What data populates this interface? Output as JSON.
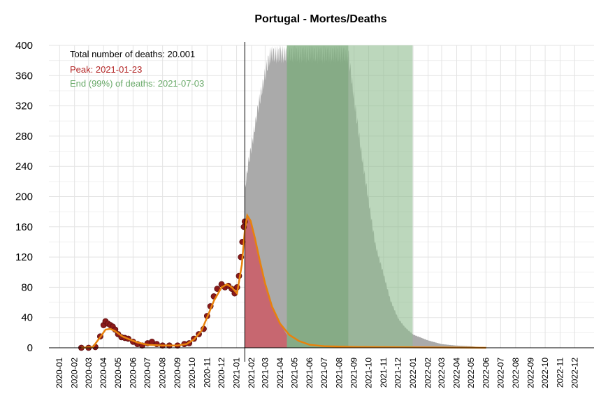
{
  "chart_data": {
    "type": "area",
    "title": "Portugal - Mortes/Deaths",
    "xlabel": "",
    "ylabel": "",
    "ylim": [
      0,
      400
    ],
    "xlim": [
      "2019-12-10",
      "2023-01-10"
    ],
    "grid": true,
    "yticks": [
      "0",
      "40",
      "80",
      "120",
      "160",
      "200",
      "240",
      "280",
      "320",
      "360",
      "400"
    ],
    "xticks": [
      "2020-01",
      "2020-02",
      "2020-03",
      "2020-04",
      "2020-05",
      "2020-06",
      "2020-07",
      "2020-08",
      "2020-09",
      "2020-10",
      "2020-11",
      "2020-12",
      "2021-01",
      "2021-02",
      "2021-03",
      "2021-04",
      "2021-05",
      "2021-06",
      "2021-07",
      "2021-08",
      "2021-09",
      "2021-10",
      "2021-11",
      "2021-12",
      "2022-01",
      "2022-02",
      "2022-03",
      "2022-04",
      "2022-05",
      "2022-06",
      "2022-07",
      "2022-08",
      "2022-09",
      "2022-10",
      "2022-11",
      "2022-12"
    ],
    "annotations": {
      "total": "Total number of deaths: 20.001",
      "peak": "Peak: 2021-01-23",
      "end": "End (99%) of deaths: 2021-07-03"
    },
    "colors": {
      "points": "#8b1a1a",
      "fit_line": "#e8820c",
      "peak_area": "#cd5c66",
      "upper_band": "#aaaaaa",
      "green_band": "#8fbc8f",
      "peak_text": "#b22222",
      "end_text": "#6aaa6a",
      "grid": "#e3e3e3"
    },
    "today": "2021-01-18",
    "bands": {
      "green_start": "2021-04-15",
      "green_end": "2021-12-31",
      "dark_green_start": "2021-04-15",
      "dark_green_end": "2021-08-20"
    },
    "observed_points": [
      {
        "x": "2020-02-15",
        "y": 0
      },
      {
        "x": "2020-03-01",
        "y": 0
      },
      {
        "x": "2020-03-15",
        "y": 1
      },
      {
        "x": "2020-03-25",
        "y": 15
      },
      {
        "x": "2020-04-01",
        "y": 30
      },
      {
        "x": "2020-04-05",
        "y": 35
      },
      {
        "x": "2020-04-10",
        "y": 32
      },
      {
        "x": "2020-04-15",
        "y": 30
      },
      {
        "x": "2020-04-20",
        "y": 28
      },
      {
        "x": "2020-04-25",
        "y": 24
      },
      {
        "x": "2020-05-01",
        "y": 18
      },
      {
        "x": "2020-05-08",
        "y": 14
      },
      {
        "x": "2020-05-15",
        "y": 13
      },
      {
        "x": "2020-05-22",
        "y": 12
      },
      {
        "x": "2020-06-01",
        "y": 8
      },
      {
        "x": "2020-06-10",
        "y": 5
      },
      {
        "x": "2020-06-20",
        "y": 3
      },
      {
        "x": "2020-07-01",
        "y": 6
      },
      {
        "x": "2020-07-10",
        "y": 8
      },
      {
        "x": "2020-07-20",
        "y": 5
      },
      {
        "x": "2020-08-01",
        "y": 3
      },
      {
        "x": "2020-08-15",
        "y": 3
      },
      {
        "x": "2020-09-01",
        "y": 3
      },
      {
        "x": "2020-09-15",
        "y": 5
      },
      {
        "x": "2020-09-25",
        "y": 6
      },
      {
        "x": "2020-10-05",
        "y": 12
      },
      {
        "x": "2020-10-15",
        "y": 18
      },
      {
        "x": "2020-10-25",
        "y": 25
      },
      {
        "x": "2020-11-01",
        "y": 42
      },
      {
        "x": "2020-11-08",
        "y": 55
      },
      {
        "x": "2020-11-15",
        "y": 68
      },
      {
        "x": "2020-11-22",
        "y": 78
      },
      {
        "x": "2020-12-01",
        "y": 84
      },
      {
        "x": "2020-12-08",
        "y": 80
      },
      {
        "x": "2020-12-15",
        "y": 82
      },
      {
        "x": "2020-12-22",
        "y": 78
      },
      {
        "x": "2020-12-28",
        "y": 72
      },
      {
        "x": "2021-01-02",
        "y": 80
      },
      {
        "x": "2021-01-06",
        "y": 95
      },
      {
        "x": "2021-01-10",
        "y": 120
      },
      {
        "x": "2021-01-13",
        "y": 140
      },
      {
        "x": "2021-01-16",
        "y": 160
      },
      {
        "x": "2021-01-18",
        "y": 167
      }
    ],
    "fit_curve": [
      {
        "x": "2020-02-15",
        "y": 0
      },
      {
        "x": "2020-03-10",
        "y": 1
      },
      {
        "x": "2020-03-25",
        "y": 14
      },
      {
        "x": "2020-04-05",
        "y": 24
      },
      {
        "x": "2020-04-15",
        "y": 25
      },
      {
        "x": "2020-04-25",
        "y": 22
      },
      {
        "x": "2020-05-10",
        "y": 15
      },
      {
        "x": "2020-05-25",
        "y": 11
      },
      {
        "x": "2020-06-10",
        "y": 7
      },
      {
        "x": "2020-07-01",
        "y": 4
      },
      {
        "x": "2020-08-01",
        "y": 3
      },
      {
        "x": "2020-09-01",
        "y": 3
      },
      {
        "x": "2020-09-20",
        "y": 5
      },
      {
        "x": "2020-10-05",
        "y": 11
      },
      {
        "x": "2020-10-20",
        "y": 22
      },
      {
        "x": "2020-11-01",
        "y": 40
      },
      {
        "x": "2020-11-15",
        "y": 62
      },
      {
        "x": "2020-12-01",
        "y": 80
      },
      {
        "x": "2020-12-12",
        "y": 84
      },
      {
        "x": "2020-12-22",
        "y": 80
      },
      {
        "x": "2021-01-02",
        "y": 72
      },
      {
        "x": "2021-01-12",
        "y": 110
      },
      {
        "x": "2021-01-18",
        "y": 155
      },
      {
        "x": "2021-01-23",
        "y": 175
      },
      {
        "x": "2021-01-30",
        "y": 168
      },
      {
        "x": "2021-02-08",
        "y": 145
      },
      {
        "x": "2021-02-18",
        "y": 115
      },
      {
        "x": "2021-03-01",
        "y": 85
      },
      {
        "x": "2021-03-15",
        "y": 55
      },
      {
        "x": "2021-04-01",
        "y": 32
      },
      {
        "x": "2021-04-20",
        "y": 17
      },
      {
        "x": "2021-05-10",
        "y": 9
      },
      {
        "x": "2021-06-01",
        "y": 4
      },
      {
        "x": "2021-07-01",
        "y": 2
      },
      {
        "x": "2021-09-01",
        "y": 1
      },
      {
        "x": "2022-06-01",
        "y": 0
      }
    ],
    "upper_band": [
      {
        "x": "2021-01-18",
        "y": 215
      },
      {
        "x": "2021-01-25",
        "y": 250
      },
      {
        "x": "2021-02-05",
        "y": 290
      },
      {
        "x": "2021-02-15",
        "y": 330
      },
      {
        "x": "2021-02-25",
        "y": 360
      },
      {
        "x": "2021-03-05",
        "y": 385
      },
      {
        "x": "2021-03-12",
        "y": 400
      },
      {
        "x": "2021-08-20",
        "y": 400
      },
      {
        "x": "2021-09-01",
        "y": 340
      },
      {
        "x": "2021-09-15",
        "y": 270
      },
      {
        "x": "2021-10-01",
        "y": 200
      },
      {
        "x": "2021-10-15",
        "y": 140
      },
      {
        "x": "2021-11-01",
        "y": 100
      },
      {
        "x": "2021-11-15",
        "y": 65
      },
      {
        "x": "2021-12-01",
        "y": 40
      },
      {
        "x": "2021-12-15",
        "y": 28
      },
      {
        "x": "2022-01-01",
        "y": 18
      },
      {
        "x": "2022-02-01",
        "y": 10
      },
      {
        "x": "2022-03-01",
        "y": 5
      },
      {
        "x": "2022-04-01",
        "y": 3
      },
      {
        "x": "2022-05-01",
        "y": 2
      },
      {
        "x": "2022-06-01",
        "y": 0
      }
    ]
  }
}
